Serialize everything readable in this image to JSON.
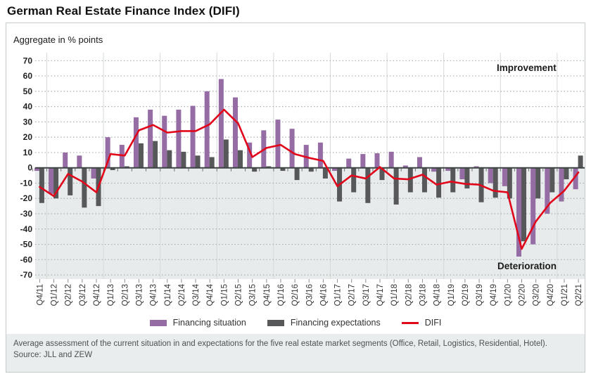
{
  "page": {
    "title": "German Real Estate Finance Index (DIFI)",
    "subtitle": "Aggregate in % points"
  },
  "annotations": {
    "improvement": "Improvement",
    "deterioration": "Deterioration"
  },
  "legend": [
    {
      "label": "Financing situation",
      "swatch": "box",
      "color": "#956ca3"
    },
    {
      "label": "Financing expectations",
      "swatch": "box",
      "color": "#56585a"
    },
    {
      "label": "DIFI",
      "swatch": "line",
      "color": "#e2061b"
    }
  ],
  "footer": {
    "caption": "Average assessment of the current situation in and expectations for the five real estate market segments (Office, Retail, Logistics, Residential, Hotel).",
    "source": "Source: JLL and ZEW"
  },
  "chart_data": {
    "type": "bar",
    "title": "German Real Estate Finance Index (DIFI)",
    "ylabel": "Aggregate in % points",
    "ylim": [
      -70,
      70
    ],
    "ytick_step": 10,
    "grid": "horizontal dotted every 10, vertical solid at year boundaries",
    "legend_position": "bottom",
    "negative_region_shaded": true,
    "categories": [
      "Q4/11",
      "Q1/12",
      "Q2/12",
      "Q3/12",
      "Q4/12",
      "Q1/13",
      "Q2/13",
      "Q3/13",
      "Q4/13",
      "Q1/14",
      "Q2/14",
      "Q3/14",
      "Q4/14",
      "Q1/15",
      "Q2/15",
      "Q3/15",
      "Q4/15",
      "Q1/16",
      "Q2/16",
      "Q3/16",
      "Q4/16",
      "Q1/17",
      "Q2/17",
      "Q3/17",
      "Q4/17",
      "Q1/18",
      "Q2/18",
      "Q3/18",
      "Q4/18",
      "Q1/19",
      "Q2/19",
      "Q3/19",
      "Q4/19",
      "Q1/20",
      "Q2/20",
      "Q3/20",
      "Q4/20",
      "Q1/21",
      "Q2/21"
    ],
    "series": [
      {
        "name": "Financing situation",
        "type": "bar",
        "color": "#956ca3",
        "values": [
          -2,
          -17,
          10,
          8,
          -7,
          20,
          15,
          33,
          38,
          34,
          38,
          40.5,
          50,
          58,
          46,
          16.5,
          24.5,
          31.5,
          25.5,
          15,
          16.5,
          -2,
          6,
          9,
          9.5,
          10.5,
          1.5,
          7,
          -2.5,
          -2,
          -7.5,
          1,
          -10,
          -12,
          -58,
          -50,
          -30,
          -22,
          -14
        ]
      },
      {
        "name": "Financing expectations",
        "type": "bar",
        "color": "#56585a",
        "values": [
          -23,
          -20,
          -18,
          -26,
          -25,
          -1.5,
          1,
          16,
          17.5,
          11.5,
          10.5,
          8,
          7,
          18.5,
          11.5,
          -2.5,
          1,
          -2,
          -8,
          -2.5,
          -7,
          -22,
          -16,
          -23,
          -8,
          -24,
          -16,
          -16,
          -19.5,
          -16,
          -13.5,
          -22.5,
          -19.5,
          -20,
          -48,
          -20,
          -16,
          -7.5,
          8
        ]
      },
      {
        "name": "DIFI",
        "type": "line",
        "color": "#e2061b",
        "values": [
          -12.5,
          -18.5,
          -4,
          -9,
          -16,
          9,
          8,
          24.5,
          28,
          23,
          24,
          24,
          28.5,
          38,
          29,
          7,
          13,
          15,
          9,
          6.5,
          4.5,
          -12,
          -5,
          -7,
          0.5,
          -7,
          -7.5,
          -4.5,
          -11,
          -9,
          -10.5,
          -11,
          -15,
          -16,
          -53,
          -35,
          -23,
          -15,
          -3
        ]
      }
    ],
    "colors": {
      "zero_line": "#3d4243",
      "dotted_grid": "#a8aeae",
      "year_grid": "#d4d9d9",
      "negative_shade": "#e8ebeb",
      "axis_text": "#222222"
    }
  }
}
